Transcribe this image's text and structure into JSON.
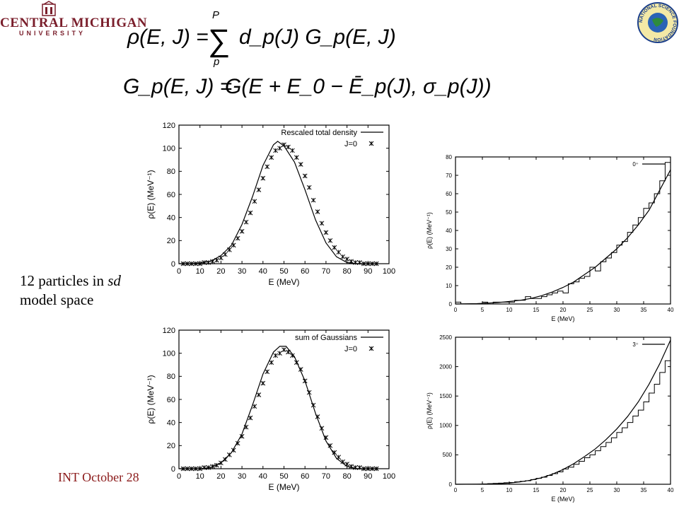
{
  "header": {
    "logo_left_name": "CENTRAL MICHIGAN",
    "logo_left_sub": "UNIVERSITY",
    "logo_right_text": "NATIONAL SCIENCE FOUNDATION"
  },
  "formulas": {
    "eq1_lhs": "ρ(E, J) =",
    "eq1_sum_upper": "P",
    "eq1_sum_lower": "p",
    "eq1_rhs": "d_p(J) G_p(E, J)",
    "eq2_lhs": "G_p(E, J) =",
    "eq2_rhs": "G(E + E_0 − Ē_p(J), σ_p(J))"
  },
  "caption": {
    "line1_prefix": "12 particles in ",
    "line1_italic": "sd",
    "line2": "model space"
  },
  "footer": {
    "text": "INT  October 28"
  },
  "colors": {
    "logo": "#7a1e2b",
    "footer": "#8b1a1a",
    "plot_line": "#000000"
  },
  "chart_data": [
    {
      "type": "line",
      "xlabel": "E (MeV)",
      "ylabel": "ρ(E) (MeV⁻¹)",
      "xlim": [
        0,
        100
      ],
      "ylim": [
        0,
        120
      ],
      "xticks": [
        0,
        10,
        20,
        30,
        40,
        50,
        60,
        70,
        80,
        90,
        100
      ],
      "yticks": [
        0,
        20,
        40,
        60,
        80,
        100,
        120
      ],
      "legend_position": "top-right",
      "series": [
        {
          "name": "Rescaled total density",
          "style": "line",
          "x": [
            0,
            5,
            10,
            15,
            20,
            25,
            30,
            35,
            40,
            45,
            47,
            50,
            55,
            60,
            65,
            70,
            75,
            80,
            85,
            90,
            95
          ],
          "y": [
            0,
            0,
            0.5,
            2,
            7,
            16,
            34,
            58,
            85,
            103,
            106,
            102,
            88,
            64,
            38,
            18,
            6,
            1,
            0,
            0,
            0
          ]
        },
        {
          "name": "J=0",
          "style": "markers",
          "x": [
            2,
            4,
            6,
            8,
            10,
            12,
            14,
            16,
            18,
            20,
            22,
            24,
            26,
            28,
            30,
            32,
            34,
            36,
            38,
            40,
            42,
            44,
            46,
            48,
            50,
            52,
            54,
            56,
            58,
            60,
            62,
            64,
            66,
            68,
            70,
            72,
            74,
            76,
            78,
            80,
            82,
            84,
            86,
            88,
            90,
            92,
            94
          ],
          "y": [
            0,
            0,
            0,
            0,
            0,
            1,
            1,
            2,
            3,
            5,
            8,
            12,
            16,
            22,
            28,
            36,
            44,
            54,
            64,
            74,
            84,
            92,
            98,
            100,
            103,
            101,
            98,
            92,
            86,
            76,
            66,
            55,
            45,
            35,
            27,
            20,
            14,
            10,
            6,
            4,
            2,
            1,
            1,
            0,
            0,
            0,
            0
          ]
        }
      ]
    },
    {
      "type": "line",
      "xlabel": "E (MeV)",
      "ylabel": "ρ(E) (MeV⁻¹)",
      "xlim": [
        0,
        100
      ],
      "ylim": [
        0,
        120
      ],
      "xticks": [
        0,
        10,
        20,
        30,
        40,
        50,
        60,
        70,
        80,
        90,
        100
      ],
      "yticks": [
        0,
        20,
        40,
        60,
        80,
        100,
        120
      ],
      "legend_position": "top-right",
      "series": [
        {
          "name": "sum of Gaussians",
          "style": "line",
          "x": [
            0,
            5,
            10,
            15,
            20,
            25,
            30,
            35,
            40,
            45,
            48,
            51,
            55,
            60,
            65,
            70,
            75,
            80,
            85,
            90,
            95
          ],
          "y": [
            0,
            0,
            0,
            1,
            5,
            14,
            30,
            55,
            82,
            101,
            106,
            106,
            97,
            76,
            48,
            24,
            9,
            2,
            0,
            0,
            0
          ]
        },
        {
          "name": "J=0",
          "style": "markers",
          "x": [
            2,
            4,
            6,
            8,
            10,
            12,
            14,
            16,
            18,
            20,
            22,
            24,
            26,
            28,
            30,
            32,
            34,
            36,
            38,
            40,
            42,
            44,
            46,
            48,
            50,
            52,
            54,
            56,
            58,
            60,
            62,
            64,
            66,
            68,
            70,
            72,
            74,
            76,
            78,
            80,
            82,
            84,
            86,
            88,
            90,
            92,
            94
          ],
          "y": [
            0,
            0,
            0,
            0,
            0,
            1,
            1,
            2,
            3,
            5,
            8,
            12,
            16,
            22,
            28,
            36,
            44,
            54,
            64,
            74,
            84,
            92,
            98,
            100,
            103,
            101,
            98,
            92,
            86,
            76,
            66,
            55,
            45,
            35,
            27,
            20,
            14,
            10,
            6,
            4,
            2,
            1,
            1,
            0,
            0,
            0,
            0
          ]
        }
      ]
    },
    {
      "type": "line",
      "xlabel": "E (MeV)",
      "ylabel": "ρ(E) (MeV⁻¹)",
      "xlim": [
        0,
        40
      ],
      "ylim": [
        0,
        80
      ],
      "xticks": [
        0,
        5,
        10,
        15,
        20,
        25,
        30,
        35,
        40
      ],
      "yticks": [
        0,
        10,
        20,
        30,
        40,
        50,
        60,
        70,
        80
      ],
      "legend_position": "top-right",
      "series": [
        {
          "name": "0⁺",
          "style": "line",
          "x": [
            0,
            4,
            8,
            12,
            14,
            16,
            18,
            20,
            22,
            24,
            26,
            28,
            30,
            32,
            34,
            36,
            38,
            40
          ],
          "y": [
            0,
            0.2,
            0.8,
            2,
            3,
            4.5,
            6.5,
            9,
            12,
            16,
            20,
            25,
            30,
            36,
            43,
            51,
            62,
            73
          ]
        },
        {
          "name": "",
          "style": "step",
          "x": [
            0,
            1,
            2,
            3,
            4,
            5,
            6,
            7,
            8,
            9,
            10,
            11,
            12,
            13,
            14,
            15,
            16,
            17,
            18,
            19,
            20,
            21,
            22,
            23,
            24,
            25,
            26,
            27,
            28,
            29,
            30,
            31,
            32,
            33,
            34,
            35,
            36,
            37,
            38,
            39
          ],
          "y": [
            1,
            0,
            0,
            0,
            0,
            1,
            0,
            1,
            1,
            1,
            1,
            2,
            2,
            4,
            3,
            3,
            4,
            5,
            6,
            7,
            6,
            11,
            12,
            14,
            15,
            20,
            18,
            23,
            25,
            28,
            32,
            34,
            39,
            43,
            47,
            52,
            55,
            60,
            67,
            77
          ]
        }
      ]
    },
    {
      "type": "line",
      "xlabel": "E (MeV)",
      "ylabel": "ρ(E) (MeV⁻¹)",
      "xlim": [
        0,
        40
      ],
      "ylim": [
        0,
        2500
      ],
      "xticks": [
        0,
        5,
        10,
        15,
        20,
        25,
        30,
        35,
        40
      ],
      "yticks": [
        0,
        500,
        1000,
        1500,
        2000,
        2500
      ],
      "legend_position": "top-right",
      "series": [
        {
          "name": "3⁺",
          "style": "line",
          "x": [
            0,
            4,
            8,
            10,
            12,
            14,
            16,
            18,
            20,
            22,
            24,
            26,
            28,
            30,
            32,
            34,
            36,
            38,
            40
          ],
          "y": [
            0,
            2,
            10,
            20,
            40,
            70,
            110,
            170,
            250,
            350,
            470,
            600,
            760,
            940,
            1150,
            1400,
            1700,
            2050,
            2450
          ]
        },
        {
          "name": "",
          "style": "step",
          "x": [
            0,
            1,
            2,
            3,
            4,
            5,
            6,
            7,
            8,
            9,
            10,
            11,
            12,
            13,
            14,
            15,
            16,
            17,
            18,
            19,
            20,
            21,
            22,
            23,
            24,
            25,
            26,
            27,
            28,
            29,
            30,
            31,
            32,
            33,
            34,
            35,
            36,
            37,
            38,
            39
          ],
          "y": [
            0,
            0,
            0,
            0,
            0,
            5,
            10,
            15,
            20,
            25,
            30,
            40,
            50,
            60,
            80,
            100,
            120,
            150,
            180,
            210,
            260,
            290,
            340,
            390,
            450,
            500,
            570,
            640,
            710,
            790,
            880,
            960,
            1050,
            1160,
            1260,
            1400,
            1550,
            1700,
            1900,
            2100
          ]
        }
      ]
    }
  ]
}
